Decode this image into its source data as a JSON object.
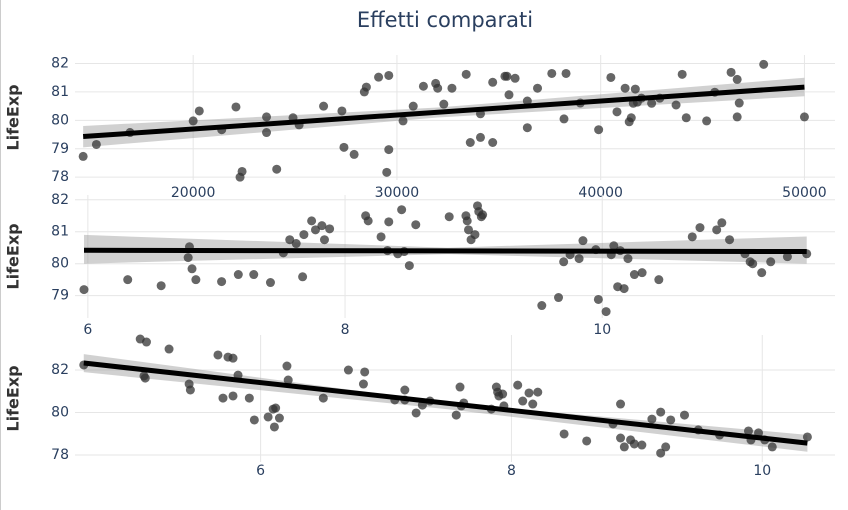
{
  "title": "Effetti comparati",
  "chart_data": [
    {
      "type": "scatter",
      "ylabel": "LifeExp",
      "color": "#333333",
      "fit_color": "#000000",
      "band_color": "#999999",
      "grid": true,
      "xlim": [
        14200,
        51500
      ],
      "ylim": [
        77.9,
        82.3
      ],
      "xticks": [
        20000,
        30000,
        40000,
        50000
      ],
      "yticks": [
        78,
        79,
        80,
        81,
        82
      ],
      "x": [
        14600,
        15250,
        16900,
        20000,
        20300,
        21400,
        22100,
        22300,
        22400,
        23600,
        23600,
        24100,
        24900,
        25200,
        26400,
        27300,
        27400,
        27900,
        28400,
        28500,
        29100,
        29600,
        29600,
        29500,
        30300,
        30800,
        31300,
        31900,
        32000,
        32300,
        32700,
        33400,
        33600,
        34100,
        34100,
        34700,
        34700,
        35300,
        35400,
        35500,
        35800,
        36400,
        36400,
        36900,
        37600,
        38300,
        38200,
        39000,
        39900,
        40500,
        40800,
        41200,
        41400,
        41500,
        41600,
        41700,
        41800,
        42000,
        42500,
        42900,
        43700,
        44000,
        44200,
        45200,
        45600,
        46400,
        46700,
        46800,
        46700,
        48000,
        50000
      ],
      "y": [
        78.73,
        79.15,
        79.57,
        79.98,
        80.33,
        79.67,
        80.47,
        78.0,
        78.2,
        80.12,
        79.57,
        78.28,
        80.09,
        79.84,
        80.5,
        80.33,
        79.05,
        78.8,
        81.0,
        81.17,
        81.52,
        81.58,
        78.97,
        78.17,
        79.98,
        80.5,
        81.2,
        81.3,
        81.13,
        80.57,
        81.13,
        81.62,
        79.22,
        80.23,
        79.4,
        81.34,
        79.22,
        81.55,
        81.55,
        80.9,
        81.48,
        79.74,
        80.68,
        81.13,
        81.65,
        81.65,
        80.05,
        80.61,
        79.67,
        81.51,
        80.3,
        81.13,
        79.95,
        80.09,
        80.6,
        81.1,
        80.64,
        80.78,
        80.6,
        80.78,
        80.54,
        81.62,
        80.09,
        79.98,
        80.99,
        81.69,
        81.44,
        80.61,
        80.12,
        81.97,
        80.12
      ],
      "fit": {
        "x": [
          14600,
          50000
        ],
        "y": [
          79.43,
          81.17
        ]
      },
      "band": {
        "x": [
          14600,
          32000,
          50000
        ],
        "lower": [
          79.05,
          80.1,
          80.85
        ],
        "upper": [
          79.8,
          80.45,
          81.5
        ]
      }
    },
    {
      "type": "scatter",
      "ylabel": "LifeExp",
      "color": "#333333",
      "fit_color": "#000000",
      "band_color": "#999999",
      "grid": true,
      "xlim": [
        5.9,
        11.81
      ],
      "ylim": [
        78.3,
        82.15
      ],
      "xticks": [
        6,
        8,
        10
      ],
      "yticks": [
        79,
        80,
        81,
        82
      ],
      "x": [
        5.97,
        6.31,
        6.57,
        6.78,
        6.79,
        6.81,
        6.84,
        7.04,
        7.17,
        7.29,
        7.42,
        7.52,
        7.57,
        7.62,
        7.67,
        7.68,
        7.74,
        7.77,
        7.82,
        7.84,
        7.88,
        8.16,
        8.18,
        8.28,
        8.33,
        8.34,
        8.41,
        8.44,
        8.46,
        8.5,
        8.55,
        8.81,
        8.94,
        8.95,
        8.96,
        8.98,
        9.01,
        9.03,
        9.04,
        9.06,
        9.07,
        9.53,
        9.66,
        9.7,
        9.75,
        9.82,
        9.85,
        9.95,
        9.97,
        10.03,
        10.07,
        10.09,
        10.12,
        10.14,
        10.17,
        10.2,
        10.25,
        10.31,
        10.44,
        10.7,
        10.76,
        10.89,
        10.93,
        10.99,
        11.11,
        11.15,
        11.17,
        11.24,
        11.31,
        11.44,
        11.59
      ],
      "y": [
        79.19,
        79.5,
        79.31,
        80.19,
        80.53,
        79.84,
        79.5,
        79.44,
        79.66,
        79.66,
        79.41,
        80.34,
        80.75,
        80.63,
        79.59,
        80.91,
        81.34,
        81.06,
        81.19,
        80.75,
        81.09,
        81.5,
        81.34,
        80.84,
        80.41,
        81.31,
        80.31,
        81.69,
        80.38,
        79.94,
        81.22,
        81.47,
        81.5,
        81.34,
        81.06,
        80.75,
        80.91,
        81.81,
        81.63,
        81.47,
        81.53,
        78.69,
        78.94,
        80.06,
        80.28,
        80.16,
        80.72,
        80.44,
        78.88,
        78.5,
        80.28,
        80.56,
        79.28,
        80.41,
        79.22,
        80.16,
        79.66,
        79.72,
        79.5,
        80.84,
        81.13,
        81.06,
        81.28,
        80.75,
        80.31,
        80.06,
        80.0,
        79.72,
        80.06,
        80.22,
        80.31
      ],
      "fit": {
        "x": [
          5.97,
          11.59
        ],
        "y": [
          80.42,
          80.38
        ]
      },
      "band": {
        "x": [
          5.97,
          8.8,
          11.59
        ],
        "lower": [
          80.0,
          80.3,
          80.0
        ],
        "upper": [
          80.9,
          80.5,
          80.85
        ]
      }
    },
    {
      "type": "scatter",
      "ylabel": "LifeExp",
      "color": "#333333",
      "fit_color": "#000000",
      "band_color": "#999999",
      "grid": true,
      "xlim": [
        4.52,
        10.58
      ],
      "ylim": [
        77.67,
        83.65
      ],
      "xticks": [
        6,
        8,
        10
      ],
      "yticks": [
        78,
        80,
        82
      ],
      "x": [
        4.59,
        5.04,
        5.09,
        5.07,
        5.08,
        5.27,
        5.43,
        5.44,
        5.66,
        5.7,
        5.74,
        5.78,
        5.78,
        5.82,
        5.91,
        5.95,
        6.06,
        6.1,
        6.11,
        6.12,
        6.15,
        6.21,
        6.22,
        6.5,
        6.7,
        6.83,
        6.82,
        7.07,
        7.15,
        7.15,
        7.24,
        7.29,
        7.35,
        7.56,
        7.59,
        7.6,
        7.62,
        7.84,
        7.88,
        7.89,
        7.9,
        7.93,
        7.94,
        8.05,
        8.09,
        8.14,
        8.17,
        8.21,
        8.42,
        8.6,
        8.81,
        8.87,
        8.87,
        8.9,
        8.95,
        8.98,
        9.04,
        9.12,
        9.19,
        9.19,
        9.23,
        9.27,
        9.38,
        9.49,
        9.66,
        9.89,
        9.91,
        9.97,
        10.02,
        10.08,
        10.36
      ],
      "y": [
        82.24,
        83.46,
        83.32,
        81.72,
        81.62,
        82.99,
        81.34,
        81.06,
        82.71,
        80.68,
        82.61,
        80.78,
        82.56,
        81.76,
        80.68,
        79.65,
        79.79,
        80.16,
        79.32,
        80.21,
        79.74,
        82.19,
        81.53,
        80.68,
        82.0,
        81.91,
        81.34,
        80.59,
        81.06,
        80.59,
        79.98,
        80.35,
        80.54,
        79.88,
        81.2,
        80.31,
        80.45,
        80.16,
        81.2,
        80.96,
        80.78,
        80.87,
        80.31,
        81.29,
        80.54,
        80.92,
        80.4,
        80.96,
        78.99,
        78.66,
        79.46,
        80.4,
        78.8,
        78.38,
        78.71,
        78.52,
        78.47,
        79.69,
        80.02,
        78.09,
        78.38,
        79.65,
        79.88,
        79.18,
        78.94,
        79.13,
        78.71,
        79.04,
        78.71,
        78.38,
        78.85
      ],
      "fit": {
        "x": [
          4.59,
          10.36
        ],
        "y": [
          82.33,
          78.56
        ]
      },
      "band": {
        "x": [
          4.59,
          7.5,
          10.36
        ],
        "lower": [
          81.9,
          80.15,
          78.15
        ],
        "upper": [
          82.75,
          80.45,
          78.95
        ]
      }
    }
  ]
}
